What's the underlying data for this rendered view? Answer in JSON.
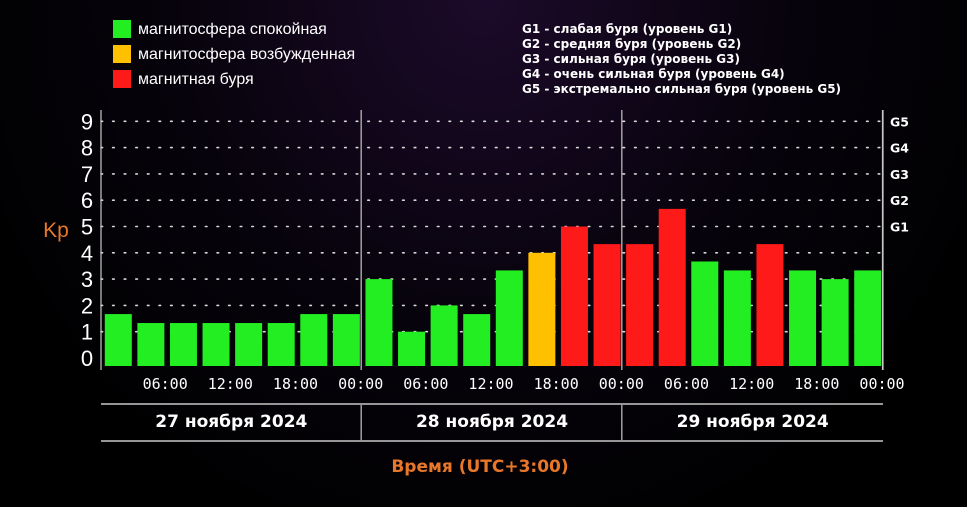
{
  "legend_status": [
    {
      "label": "магнитосфера спокойная",
      "color": "#22ee22"
    },
    {
      "label": "магнитосфера возбужденная",
      "color": "#ffc000"
    },
    {
      "label": "магнитная буря",
      "color": "#ff1a1a"
    }
  ],
  "legend_storm": [
    "G1 - слабая буря (уровень G1)",
    "G2 - средняя буря (уровень G2)",
    "G3 - сильная буря (уровень G3)",
    "G4 - очень сильная буря (уровень G4)",
    "G5 - экстремально сильная буря (уровень G5)"
  ],
  "colors": {
    "quiet": "#22ee22",
    "active": "#ffc000",
    "storm": "#ff1a1a",
    "axis_title": "#e8772a"
  },
  "chart_data": {
    "type": "bar",
    "ylabel": "Kp",
    "xlabel": "Время (UTC+3:00)",
    "ylim": [
      0,
      9
    ],
    "yticks": [
      0,
      1,
      2,
      3,
      4,
      5,
      6,
      7,
      8,
      9
    ],
    "g_levels": [
      {
        "label": "G1",
        "kp": 5
      },
      {
        "label": "G2",
        "kp": 6
      },
      {
        "label": "G3",
        "kp": 7
      },
      {
        "label": "G4",
        "kp": 8
      },
      {
        "label": "G5",
        "kp": 9
      }
    ],
    "time_ticks": [
      "06:00",
      "12:00",
      "18:00",
      "00:00",
      "06:00",
      "12:00",
      "18:00",
      "00:00",
      "06:00",
      "12:00",
      "18:00",
      "00:00"
    ],
    "days": [
      "27 ноября 2024",
      "28 ноября 2024",
      "29 ноября 2024"
    ],
    "values": [
      1.67,
      1.33,
      1.33,
      1.33,
      1.33,
      1.33,
      1.67,
      1.67,
      3.0,
      1.0,
      2.0,
      1.67,
      3.33,
      4.0,
      5.0,
      4.33,
      4.33,
      5.67,
      3.67,
      3.33,
      4.33,
      3.33,
      3.0,
      3.33
    ],
    "status": [
      "quiet",
      "quiet",
      "quiet",
      "quiet",
      "quiet",
      "quiet",
      "quiet",
      "quiet",
      "quiet",
      "quiet",
      "quiet",
      "quiet",
      "quiet",
      "active",
      "storm",
      "storm",
      "storm",
      "storm",
      "quiet",
      "quiet",
      "storm",
      "quiet",
      "quiet",
      "quiet"
    ],
    "grid": true
  }
}
